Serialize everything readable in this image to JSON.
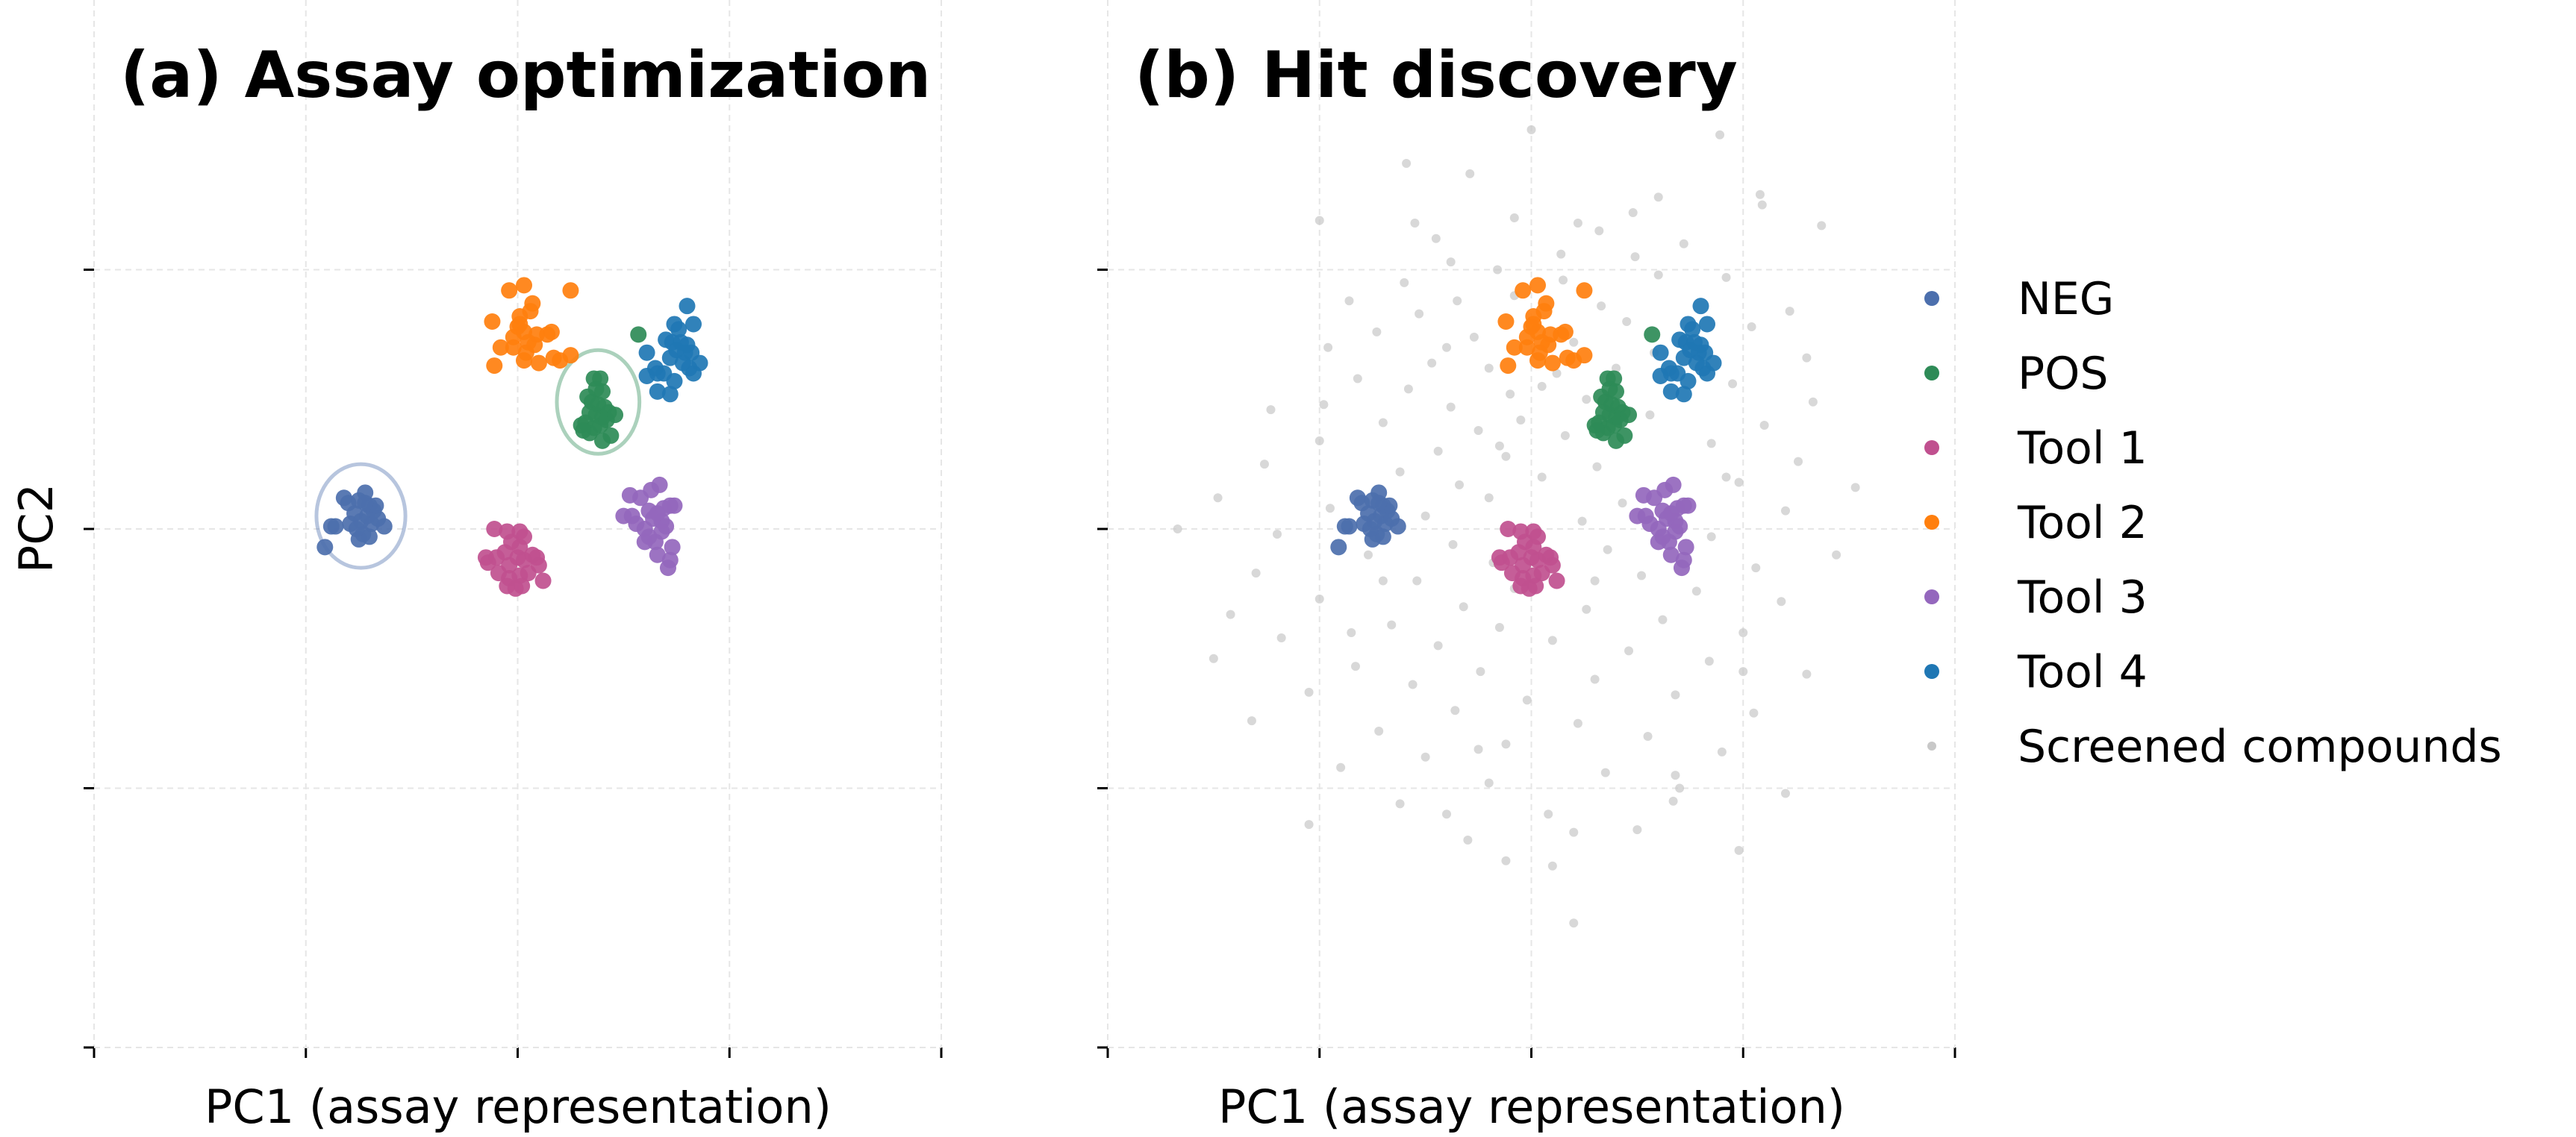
{
  "chart_data": [
    {
      "type": "scatter",
      "title": "(a) Assay optimization",
      "xlabel": "PC1 (assay representation)",
      "ylabel": "PC2",
      "xlim": [
        -2,
        2
      ],
      "ylim": [
        -2,
        2
      ],
      "xticks": [
        -2,
        -1,
        0,
        1,
        2
      ],
      "yticks": [
        -2,
        -1,
        0,
        1
      ],
      "tick_labels_shown": false,
      "grid": true,
      "ellipses": [
        {
          "series": "NEG",
          "center": [
            -0.74,
            0.05
          ],
          "rx": 0.21,
          "ry": 0.2
        },
        {
          "series": "POS",
          "center": [
            0.38,
            0.49
          ],
          "rx": 0.195,
          "ry": 0.2
        }
      ],
      "series_ref": [
        "NEG",
        "POS",
        "Tool 1",
        "Tool 2",
        "Tool 3",
        "Tool 4"
      ]
    },
    {
      "type": "scatter",
      "title": "(b) Hit discovery",
      "xlabel": "PC1 (assay representation)",
      "xlim": [
        -2,
        2
      ],
      "ylim": [
        -2,
        2
      ],
      "xticks": [
        -2,
        -1,
        0,
        1,
        2
      ],
      "yticks": [
        -2,
        -1,
        0,
        1
      ],
      "tick_labels_shown": false,
      "grid": true,
      "legend": "right",
      "series_ref": [
        "Screened compounds",
        "NEG",
        "POS",
        "Tool 1",
        "Tool 2",
        "Tool 3",
        "Tool 4"
      ]
    }
  ],
  "series": [
    {
      "name": "NEG",
      "color": "#4c6fad",
      "points": [
        [
          -0.72,
          0.14
        ],
        [
          -0.75,
          0.11
        ],
        [
          -0.7,
          0.09
        ],
        [
          -0.68,
          0.07
        ],
        [
          -0.71,
          0.05
        ],
        [
          -0.74,
          0.03
        ],
        [
          -0.77,
          0.06
        ],
        [
          -0.8,
          0.1
        ],
        [
          -0.82,
          0.12
        ],
        [
          -0.79,
          0.02
        ],
        [
          -0.73,
          -0.02
        ],
        [
          -0.7,
          -0.03
        ],
        [
          -0.75,
          -0.04
        ],
        [
          -0.69,
          0.02
        ],
        [
          -0.66,
          0.04
        ],
        [
          -0.67,
          0.09
        ],
        [
          -0.88,
          0.01
        ],
        [
          -0.86,
          0.01
        ],
        [
          -0.91,
          -0.07
        ],
        [
          -0.63,
          0.01
        ],
        [
          -0.76,
          0.0
        ],
        [
          -0.72,
          0.1
        ]
      ]
    },
    {
      "name": "POS",
      "color": "#2e8b57",
      "points": [
        [
          0.36,
          0.58
        ],
        [
          0.39,
          0.58
        ],
        [
          0.37,
          0.54
        ],
        [
          0.4,
          0.53
        ],
        [
          0.33,
          0.51
        ],
        [
          0.35,
          0.49
        ],
        [
          0.38,
          0.48
        ],
        [
          0.41,
          0.47
        ],
        [
          0.34,
          0.45
        ],
        [
          0.37,
          0.44
        ],
        [
          0.4,
          0.43
        ],
        [
          0.43,
          0.45
        ],
        [
          0.3,
          0.4
        ],
        [
          0.32,
          0.41
        ],
        [
          0.36,
          0.39
        ],
        [
          0.39,
          0.4
        ],
        [
          0.42,
          0.42
        ],
        [
          0.46,
          0.44
        ],
        [
          0.34,
          0.37
        ],
        [
          0.44,
          0.36
        ],
        [
          0.31,
          0.38
        ],
        [
          0.4,
          0.34
        ],
        [
          0.57,
          0.75
        ]
      ]
    },
    {
      "name": "Tool 1",
      "color": "#c0508f",
      "points": [
        [
          -0.11,
          0.0
        ],
        [
          -0.05,
          -0.01
        ],
        [
          0.01,
          -0.01
        ],
        [
          0.03,
          -0.03
        ],
        [
          -0.03,
          -0.05
        ],
        [
          0.01,
          -0.07
        ],
        [
          -0.06,
          -0.09
        ],
        [
          0.0,
          -0.11
        ],
        [
          -0.15,
          -0.11
        ],
        [
          -0.14,
          -0.13
        ],
        [
          -0.1,
          -0.11
        ],
        [
          -0.04,
          -0.14
        ],
        [
          0.03,
          -0.12
        ],
        [
          0.07,
          -0.1
        ],
        [
          0.09,
          -0.11
        ],
        [
          0.1,
          -0.14
        ],
        [
          -0.09,
          -0.17
        ],
        [
          -0.04,
          -0.19
        ],
        [
          0.01,
          -0.18
        ],
        [
          0.05,
          -0.17
        ],
        [
          0.12,
          -0.2
        ],
        [
          -0.05,
          -0.22
        ],
        [
          -0.01,
          -0.23
        ],
        [
          0.02,
          -0.22
        ]
      ]
    },
    {
      "name": "Tool 2",
      "color": "#ff7f0e",
      "points": [
        [
          -0.04,
          0.92
        ],
        [
          0.03,
          0.94
        ],
        [
          0.25,
          0.92
        ],
        [
          0.07,
          0.87
        ],
        [
          0.06,
          0.84
        ],
        [
          0.01,
          0.82
        ],
        [
          0.0,
          0.78
        ],
        [
          -0.02,
          0.74
        ],
        [
          0.03,
          0.76
        ],
        [
          0.05,
          0.72
        ],
        [
          0.09,
          0.75
        ],
        [
          0.14,
          0.75
        ],
        [
          0.16,
          0.76
        ],
        [
          -0.12,
          0.8
        ],
        [
          -0.08,
          0.7
        ],
        [
          -0.02,
          0.7
        ],
        [
          0.04,
          0.68
        ],
        [
          0.08,
          0.71
        ],
        [
          0.17,
          0.66
        ],
        [
          0.2,
          0.65
        ],
        [
          0.25,
          0.67
        ],
        [
          -0.11,
          0.63
        ],
        [
          0.03,
          0.65
        ],
        [
          0.1,
          0.64
        ],
        [
          0.01,
          0.79
        ]
      ]
    },
    {
      "name": "Tool 3",
      "color": "#9467bd",
      "points": [
        [
          0.53,
          0.13
        ],
        [
          0.58,
          0.12
        ],
        [
          0.63,
          0.15
        ],
        [
          0.67,
          0.17
        ],
        [
          0.5,
          0.05
        ],
        [
          0.54,
          0.05
        ],
        [
          0.62,
          0.07
        ],
        [
          0.66,
          0.06
        ],
        [
          0.69,
          0.08
        ],
        [
          0.72,
          0.09
        ],
        [
          0.74,
          0.09
        ],
        [
          0.56,
          0.02
        ],
        [
          0.6,
          0.0
        ],
        [
          0.64,
          0.04
        ],
        [
          0.68,
          0.03
        ],
        [
          0.7,
          0.01
        ],
        [
          0.62,
          -0.03
        ],
        [
          0.65,
          -0.05
        ],
        [
          0.6,
          -0.05
        ],
        [
          0.68,
          -0.01
        ],
        [
          0.73,
          -0.07
        ],
        [
          0.66,
          -0.1
        ],
        [
          0.72,
          -0.12
        ],
        [
          0.71,
          -0.15
        ]
      ]
    },
    {
      "name": "Tool 4",
      "color": "#1f77b4",
      "points": [
        [
          0.8,
          0.86
        ],
        [
          0.74,
          0.79
        ],
        [
          0.76,
          0.77
        ],
        [
          0.83,
          0.79
        ],
        [
          0.7,
          0.73
        ],
        [
          0.73,
          0.72
        ],
        [
          0.77,
          0.72
        ],
        [
          0.8,
          0.71
        ],
        [
          0.75,
          0.69
        ],
        [
          0.79,
          0.68
        ],
        [
          0.82,
          0.68
        ],
        [
          0.72,
          0.66
        ],
        [
          0.86,
          0.64
        ],
        [
          0.78,
          0.64
        ],
        [
          0.81,
          0.62
        ],
        [
          0.61,
          0.68
        ],
        [
          0.65,
          0.62
        ],
        [
          0.66,
          0.6
        ],
        [
          0.61,
          0.59
        ],
        [
          0.69,
          0.6
        ],
        [
          0.74,
          0.57
        ],
        [
          0.83,
          0.6
        ],
        [
          0.72,
          0.52
        ],
        [
          0.66,
          0.53
        ]
      ]
    },
    {
      "name": "Screened compounds",
      "color": "#c8c8c8",
      "points": [
        [
          0.0,
          1.54
        ],
        [
          0.89,
          1.52
        ],
        [
          -0.59,
          1.41
        ],
        [
          -0.29,
          1.37
        ],
        [
          1.08,
          1.29
        ],
        [
          1.09,
          1.25
        ],
        [
          0.48,
          1.22
        ],
        [
          0.22,
          1.18
        ],
        [
          -1.0,
          1.19
        ],
        [
          0.32,
          1.15
        ],
        [
          1.37,
          1.17
        ],
        [
          -0.45,
          1.12
        ],
        [
          0.14,
          1.06
        ],
        [
          0.49,
          1.05
        ],
        [
          -0.38,
          1.03
        ],
        [
          -0.16,
          1.0
        ],
        [
          0.6,
          0.98
        ],
        [
          -0.6,
          0.95
        ],
        [
          0.92,
          0.97
        ],
        [
          -0.86,
          0.88
        ],
        [
          -0.35,
          0.88
        ],
        [
          -0.08,
          0.9
        ],
        [
          0.33,
          0.86
        ],
        [
          1.22,
          0.84
        ],
        [
          -0.53,
          0.83
        ],
        [
          0.45,
          0.8
        ],
        [
          -0.73,
          0.76
        ],
        [
          1.04,
          0.78
        ],
        [
          -0.27,
          0.74
        ],
        [
          0.2,
          0.72
        ],
        [
          -0.96,
          0.7
        ],
        [
          0.58,
          0.68
        ],
        [
          -0.47,
          0.64
        ],
        [
          1.3,
          0.66
        ],
        [
          -0.2,
          0.62
        ],
        [
          0.12,
          0.6
        ],
        [
          -0.82,
          0.58
        ],
        [
          0.95,
          0.56
        ],
        [
          -0.58,
          0.54
        ],
        [
          -0.1,
          0.52
        ],
        [
          0.26,
          0.5
        ],
        [
          1.33,
          0.49
        ],
        [
          -1.23,
          0.46
        ],
        [
          -0.38,
          0.47
        ],
        [
          0.56,
          0.44
        ],
        [
          -0.05,
          0.42
        ],
        [
          -0.7,
          0.41
        ],
        [
          1.1,
          0.4
        ],
        [
          -0.25,
          0.38
        ],
        [
          0.16,
          0.36
        ],
        [
          -1.0,
          0.34
        ],
        [
          0.85,
          0.33
        ],
        [
          -0.44,
          0.3
        ],
        [
          -0.12,
          0.28
        ],
        [
          1.26,
          0.26
        ],
        [
          -1.26,
          0.25
        ],
        [
          0.31,
          0.24
        ],
        [
          -0.62,
          0.22
        ],
        [
          0.05,
          0.2
        ],
        [
          0.98,
          0.18
        ],
        [
          -0.34,
          0.17
        ],
        [
          1.53,
          0.16
        ],
        [
          -1.48,
          0.12
        ],
        [
          -0.2,
          0.12
        ],
        [
          0.43,
          0.1
        ],
        [
          -0.95,
          0.08
        ],
        [
          1.2,
          0.07
        ],
        [
          -0.5,
          0.05
        ],
        [
          0.24,
          0.03
        ],
        [
          -1.67,
          0.0
        ],
        [
          -1.2,
          -0.02
        ],
        [
          0.85,
          -0.03
        ],
        [
          -0.37,
          -0.06
        ],
        [
          0.36,
          -0.08
        ],
        [
          1.44,
          -0.1
        ],
        [
          -0.77,
          -0.1
        ],
        [
          -0.18,
          -0.13
        ],
        [
          1.06,
          -0.15
        ],
        [
          -1.3,
          -0.17
        ],
        [
          0.52,
          -0.18
        ],
        [
          -0.54,
          -0.2
        ],
        [
          -0.08,
          -0.23
        ],
        [
          0.78,
          -0.24
        ],
        [
          -1.0,
          -0.27
        ],
        [
          1.18,
          -0.28
        ],
        [
          -0.32,
          -0.3
        ],
        [
          0.26,
          -0.31
        ],
        [
          -1.42,
          -0.33
        ],
        [
          0.62,
          -0.35
        ],
        [
          -0.66,
          -0.37
        ],
        [
          -0.15,
          -0.38
        ],
        [
          1.0,
          -0.4
        ],
        [
          -1.18,
          -0.42
        ],
        [
          0.1,
          -0.43
        ],
        [
          -0.44,
          -0.45
        ],
        [
          0.46,
          -0.47
        ],
        [
          -1.5,
          -0.5
        ],
        [
          0.84,
          -0.51
        ],
        [
          -0.83,
          -0.53
        ],
        [
          -0.24,
          -0.55
        ],
        [
          1.3,
          -0.56
        ],
        [
          0.3,
          -0.58
        ],
        [
          -0.56,
          -0.6
        ],
        [
          -1.05,
          -0.63
        ],
        [
          0.68,
          -0.64
        ],
        [
          -0.02,
          -0.66
        ],
        [
          -0.36,
          -0.7
        ],
        [
          1.05,
          -0.71
        ],
        [
          -1.32,
          -0.74
        ],
        [
          0.22,
          -0.75
        ],
        [
          -0.72,
          -0.78
        ],
        [
          0.55,
          -0.8
        ],
        [
          -0.12,
          -0.83
        ],
        [
          0.9,
          -0.86
        ],
        [
          -0.5,
          -0.88
        ],
        [
          -0.9,
          -0.92
        ],
        [
          0.35,
          -0.94
        ],
        [
          -0.2,
          -0.98
        ],
        [
          0.7,
          -1.0
        ],
        [
          1.2,
          -1.02
        ],
        [
          -0.62,
          -1.06
        ],
        [
          0.08,
          -1.1
        ],
        [
          -1.05,
          -1.14
        ],
        [
          0.5,
          -1.16
        ],
        [
          -0.3,
          -1.2
        ],
        [
          0.98,
          -1.24
        ],
        [
          -0.12,
          -1.28
        ],
        [
          0.68,
          -0.95
        ],
        [
          0.67,
          -1.05
        ],
        [
          0.2,
          -1.17
        ],
        [
          0.1,
          -1.3
        ],
        [
          -0.4,
          -1.1
        ],
        [
          0.2,
          -1.52
        ],
        [
          -0.98,
          0.48
        ],
        [
          -0.08,
          1.2
        ],
        [
          0.72,
          1.1
        ],
        [
          0.6,
          1.28
        ],
        [
          -0.4,
          0.7
        ],
        [
          0.15,
          0.96
        ],
        [
          -0.7,
          -0.2
        ],
        [
          0.92,
          0.2
        ],
        [
          -0.55,
          1.18
        ],
        [
          1.0,
          -0.55
        ],
        [
          -0.25,
          -0.85
        ],
        [
          0.4,
          0.62
        ],
        [
          -0.15,
          0.32
        ],
        [
          0.3,
          -0.2
        ],
        [
          -0.85,
          -0.4
        ],
        [
          0.05,
          0.55
        ]
      ]
    }
  ],
  "legend": [
    {
      "label": "NEG",
      "color": "#4c6fad"
    },
    {
      "label": "POS",
      "color": "#2e8b57"
    },
    {
      "label": "Tool 1",
      "color": "#c0508f"
    },
    {
      "label": "Tool 2",
      "color": "#ff7f0e"
    },
    {
      "label": "Tool 3",
      "color": "#9467bd"
    },
    {
      "label": "Tool 4",
      "color": "#1f77b4"
    },
    {
      "label": "Screened compounds",
      "color": "#c8c8c8"
    }
  ]
}
